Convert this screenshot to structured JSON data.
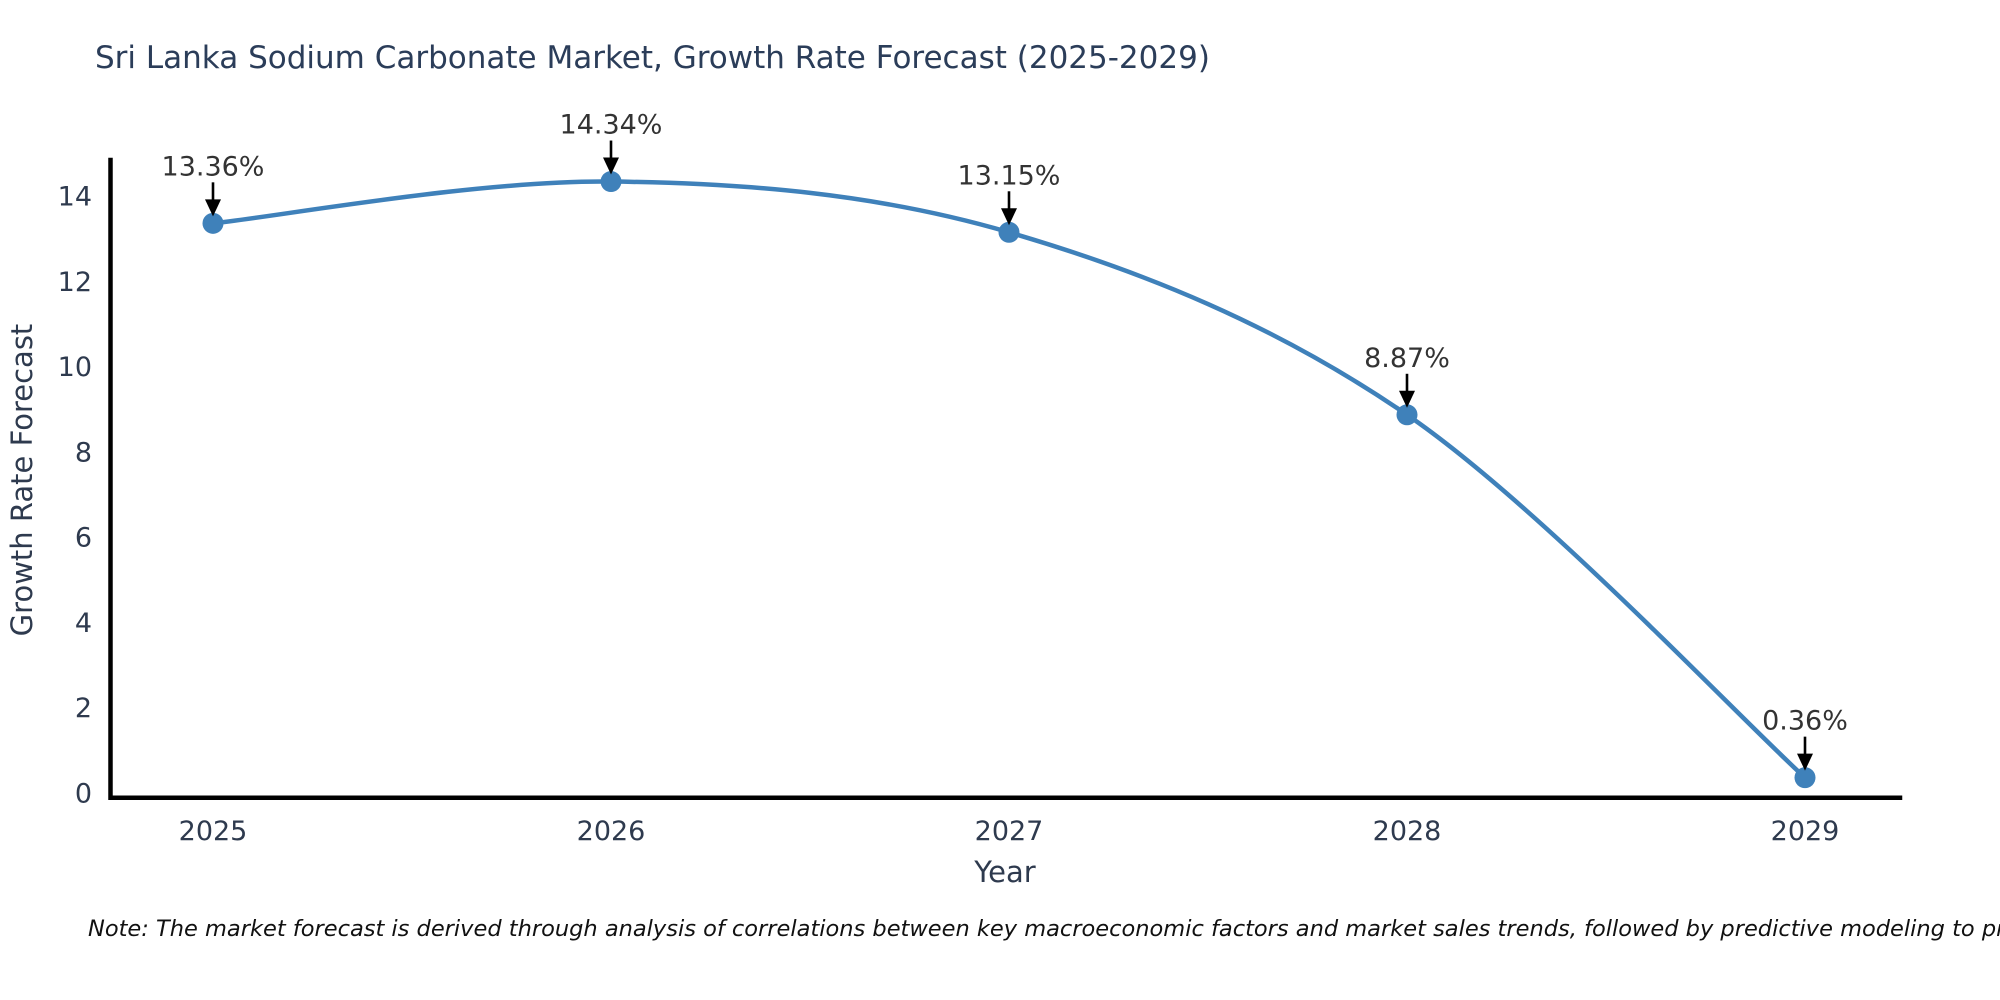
{
  "chart_data": {
    "type": "line",
    "title": "Sri Lanka Sodium Carbonate Market, Growth Rate Forecast (2025-2029)",
    "xlabel": "Year",
    "ylabel": "Growth Rate Forecast",
    "x": [
      2025,
      2026,
      2027,
      2028,
      2029
    ],
    "values": [
      13.36,
      14.34,
      13.15,
      8.87,
      0.36
    ],
    "point_labels": [
      "13.36%",
      "14.34%",
      "13.15%",
      "8.87%",
      "0.36%"
    ],
    "x_tick_labels": [
      "2025",
      "2026",
      "2027",
      "2028",
      "2029"
    ],
    "y_ticks": [
      0,
      2,
      4,
      6,
      8,
      10,
      12,
      14
    ],
    "ylim": [
      0,
      15
    ],
    "grid": false,
    "legend": "none",
    "line_smooth": true,
    "annotation_arrows": true,
    "colors": {
      "line": "#3f81ba",
      "marker": "#3f81ba",
      "axis": "#000000",
      "title": "#2b3d59",
      "tick_label": "#2e3a4e",
      "axis_title": "#2e3a4e",
      "annotation_text": "#333333",
      "annotation_arrow": "#000000",
      "background": "#ffffff"
    }
  },
  "note": "Note: The market forecast is derived through analysis of correlations between key macroeconomic factors and market sales trends, followed by predictive modeling to project future sales"
}
